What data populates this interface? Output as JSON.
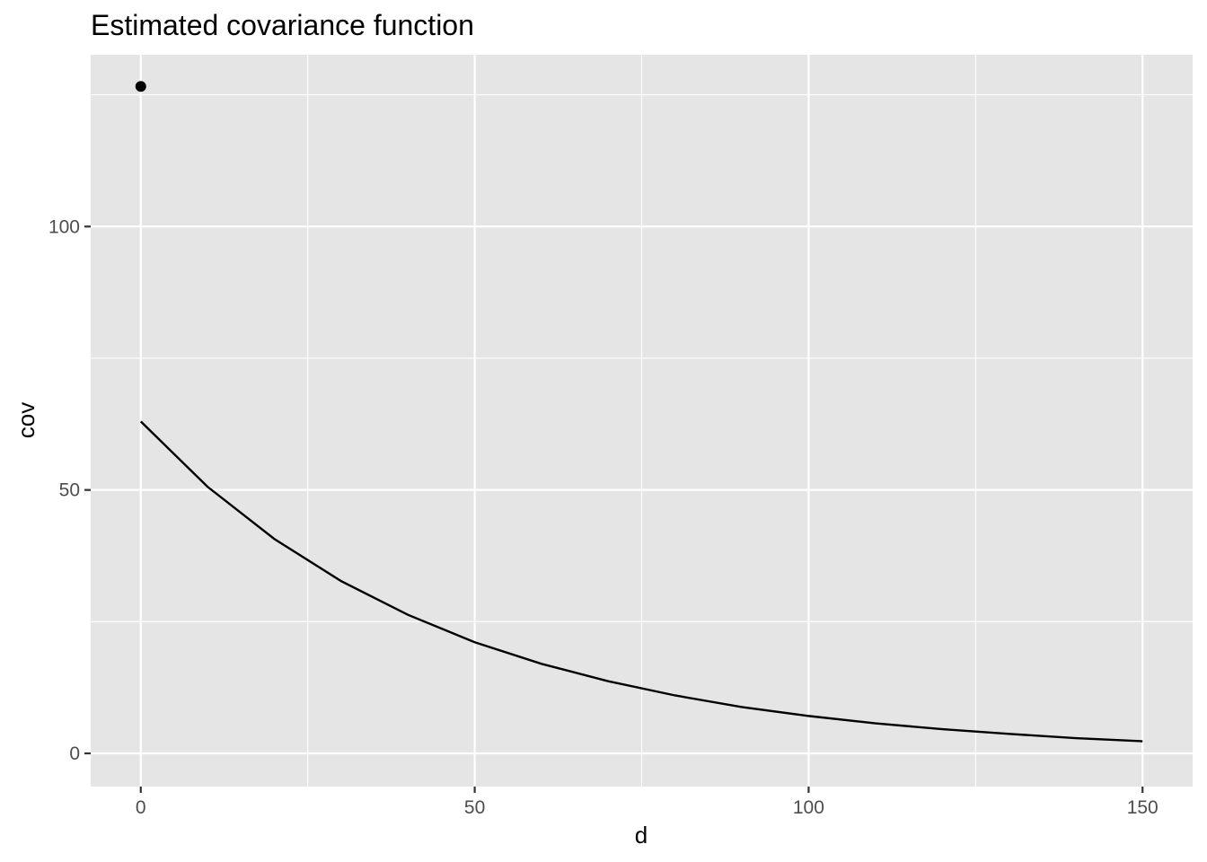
{
  "chart_data": {
    "type": "line",
    "title": "Estimated covariance function",
    "xlabel": "d",
    "ylabel": "cov",
    "xlim": [
      -7.5,
      157.5
    ],
    "ylim": [
      -6.3,
      132.6
    ],
    "x_ticks": [
      0,
      50,
      100,
      150
    ],
    "x_tick_labels": [
      "0",
      "50",
      "100",
      "150"
    ],
    "y_ticks": [
      0,
      50,
      100
    ],
    "y_tick_labels": [
      "0",
      "50",
      "100"
    ],
    "x_minor": [
      25,
      75,
      125
    ],
    "y_minor": [
      25,
      75,
      125
    ],
    "grid": true,
    "background": "#e5e5e5",
    "line": {
      "color": "#000000",
      "x": [
        0,
        10,
        20,
        30,
        40,
        50,
        60,
        70,
        80,
        90,
        100,
        110,
        120,
        130,
        140,
        150
      ],
      "y": [
        63.0,
        50.6,
        40.7,
        32.7,
        26.3,
        21.1,
        17.0,
        13.7,
        11.0,
        8.8,
        7.1,
        5.7,
        4.6,
        3.7,
        2.9,
        2.3
      ]
    },
    "points": {
      "color": "#000000",
      "x": [
        0
      ],
      "y": [
        126.6
      ]
    }
  }
}
